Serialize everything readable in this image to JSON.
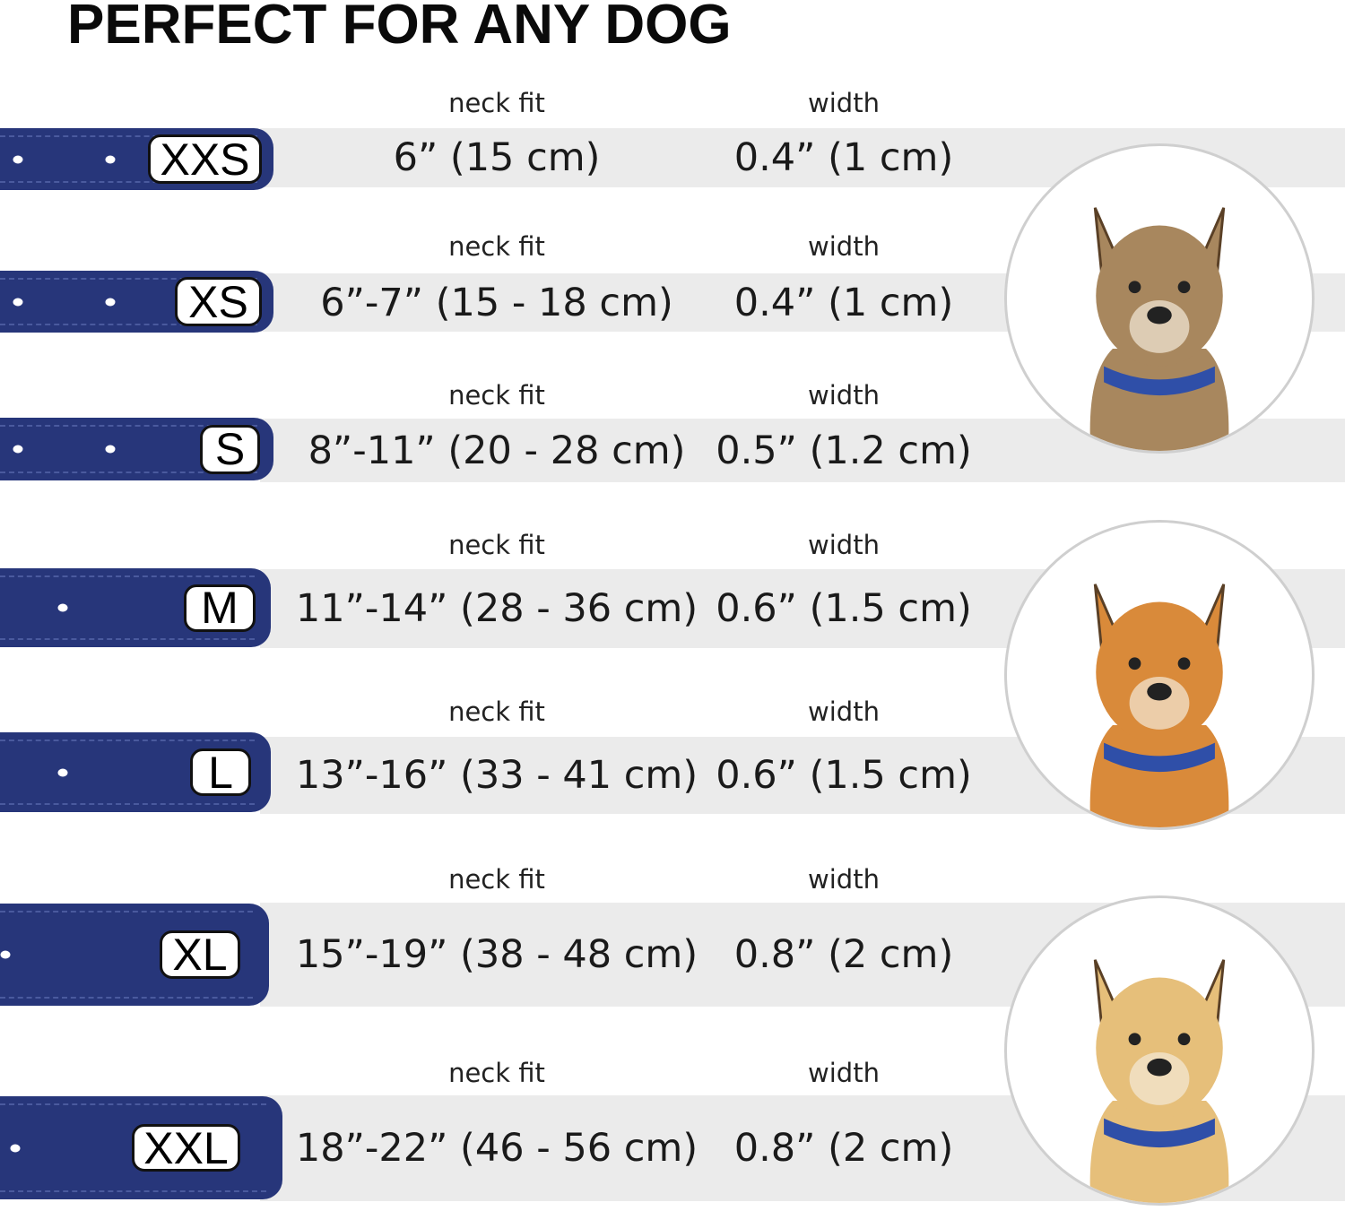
{
  "title": "PERFECT FOR ANY DOG",
  "column_labels": {
    "neck": "neck fit",
    "width": "width"
  },
  "colors": {
    "collar": "#27367a",
    "band": "#ebebeb",
    "badge_border": "#111111"
  },
  "sizes": [
    {
      "size": "XXS",
      "neck_fit": "6” (15 cm)",
      "width": "0.4” (1 cm)"
    },
    {
      "size": "XS",
      "neck_fit": "6”-7” (15 - 18 cm)",
      "width": "0.4” (1 cm)"
    },
    {
      "size": "S",
      "neck_fit": "8”-11” (20 - 28 cm)",
      "width": "0.5” (1.2 cm)"
    },
    {
      "size": "M",
      "neck_fit": "11”-14” (28 - 36 cm)",
      "width": "0.6” (1.5 cm)"
    },
    {
      "size": "L",
      "neck_fit": "13”-16” (33 - 41 cm)",
      "width": "0.6” (1.5 cm)"
    },
    {
      "size": "XL",
      "neck_fit": "15”-19” (38 - 48 cm)",
      "width": "0.8” (2 cm)"
    },
    {
      "size": "XXL",
      "neck_fit": "18”-22” (46 - 56 cm)",
      "width": "0.8” (2 cm)"
    }
  ],
  "dog_photos": [
    {
      "icon": "terrier-dog-photo",
      "fur": "#a8875e",
      "collar": "#2f4fa8"
    },
    {
      "icon": "corgi-dog-photo",
      "fur": "#d98a3a",
      "collar": "#2f4fa8"
    },
    {
      "icon": "labrador-dog-photo",
      "fur": "#e6bf7a",
      "collar": "#2f4fa8"
    }
  ]
}
